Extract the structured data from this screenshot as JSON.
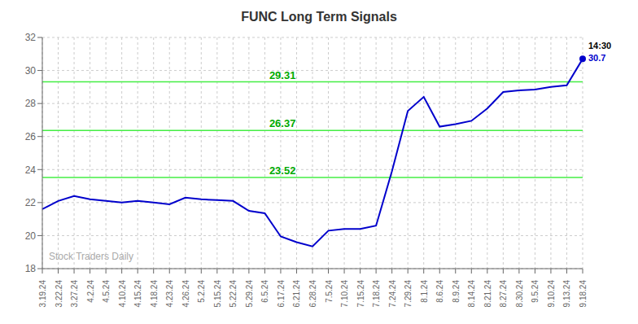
{
  "chart_data": {
    "type": "line",
    "title": "FUNC Long Term Signals",
    "categories": [
      "3.19.24",
      "3.22.24",
      "3.27.24",
      "4.2.24",
      "4.5.24",
      "4.10.24",
      "4.15.24",
      "4.18.24",
      "4.23.24",
      "4.26.24",
      "5.2.24",
      "5.15.24",
      "5.22.24",
      "5.29.24",
      "6.5.24",
      "6.17.24",
      "6.21.24",
      "6.28.24",
      "7.5.24",
      "7.10.24",
      "7.15.24",
      "7.18.24",
      "7.24.24",
      "7.29.24",
      "8.1.24",
      "8.6.24",
      "8.9.24",
      "8.14.24",
      "8.21.24",
      "8.27.24",
      "8.30.24",
      "9.5.24",
      "9.10.24",
      "9.13.24",
      "9.18.24"
    ],
    "values": [
      21.6,
      22.1,
      22.4,
      22.2,
      22.1,
      22.0,
      22.1,
      22.0,
      21.9,
      22.3,
      22.2,
      22.15,
      22.1,
      21.5,
      21.35,
      19.95,
      19.6,
      19.35,
      20.3,
      20.4,
      20.4,
      20.6,
      23.9,
      27.55,
      28.4,
      26.6,
      26.75,
      26.95,
      27.7,
      28.7,
      28.8,
      28.85,
      29.0,
      29.1,
      30.7
    ],
    "color": "#0000cc",
    "ylim": [
      18,
      32
    ],
    "yticks": [
      18,
      20,
      22,
      24,
      26,
      28,
      30,
      32
    ],
    "grid": true,
    "hlines": [
      {
        "value": 23.52,
        "label": "23.52",
        "color": "#44ee44",
        "label_color": "#00aa00"
      },
      {
        "value": 26.37,
        "label": "26.37",
        "color": "#44ee44",
        "label_color": "#00aa00"
      },
      {
        "value": 29.31,
        "label": "29.31",
        "color": "#44ee44",
        "label_color": "#00aa00"
      }
    ],
    "annotations": [
      {
        "text": "14:30",
        "color": "#000000"
      },
      {
        "text": "30.7",
        "color": "#0000cc"
      }
    ],
    "watermark": "Stock Traders Daily"
  }
}
